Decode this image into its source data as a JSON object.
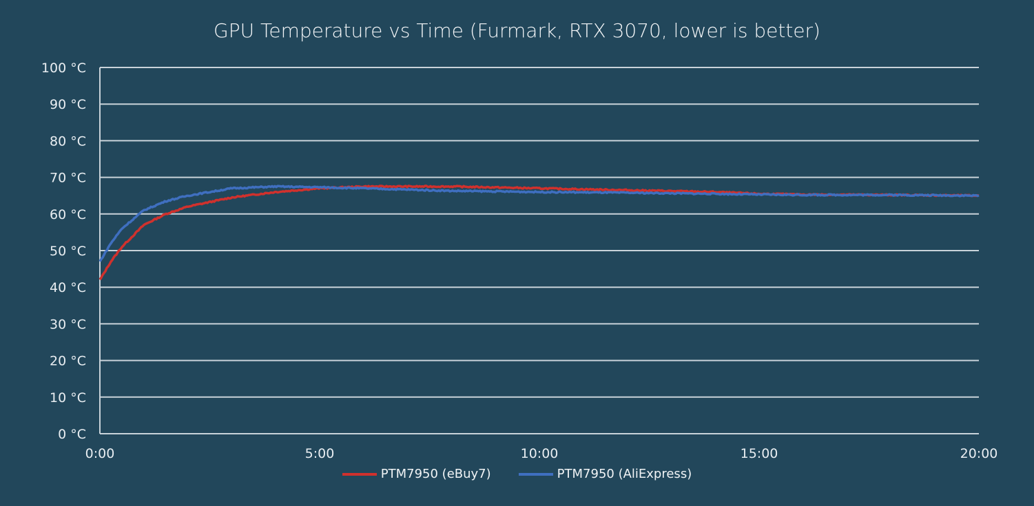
{
  "chart_data": {
    "type": "line",
    "title": "GPU Temperature vs Time (Furmark, RTX 3070, lower is better)",
    "xlabel": "",
    "ylabel": "",
    "xlim": [
      0,
      20
    ],
    "ylim": [
      0,
      100
    ],
    "x_unit": "minutes",
    "x_ticks": [
      0,
      5,
      10,
      15,
      20
    ],
    "x_tick_labels": [
      "0:00",
      "5:00",
      "10:00",
      "15:00",
      "20:00"
    ],
    "y_ticks": [
      0,
      10,
      20,
      30,
      40,
      50,
      60,
      70,
      80,
      90,
      100
    ],
    "y_tick_labels": [
      "0 °C",
      "10 °C",
      "20 °C",
      "30 °C",
      "40 °C",
      "50 °C",
      "60 °C",
      "70 °C",
      "80 °C",
      "90 °C",
      "100 °C"
    ],
    "grid": true,
    "legend_position": "bottom",
    "x": [
      0,
      0.25,
      0.5,
      1,
      1.5,
      2,
      3,
      4,
      5,
      6,
      8,
      10,
      12,
      14,
      15,
      16,
      18,
      20
    ],
    "series": [
      {
        "name": "PTM7950 (eBuy7)",
        "color": "#d0312d",
        "values": [
          42,
          47,
          51,
          57,
          60,
          62,
          64.5,
          66,
          67,
          67.5,
          67.5,
          67,
          66.5,
          66,
          65.5,
          65.3,
          65.2,
          65
        ]
      },
      {
        "name": "PTM7950 (AliExpress)",
        "color": "#3f6fc0",
        "values": [
          47,
          52,
          56,
          61,
          63.5,
          65,
          67,
          67.5,
          67.3,
          67,
          66.3,
          66,
          65.8,
          65.5,
          65.3,
          65.2,
          65.2,
          65
        ]
      }
    ]
  }
}
